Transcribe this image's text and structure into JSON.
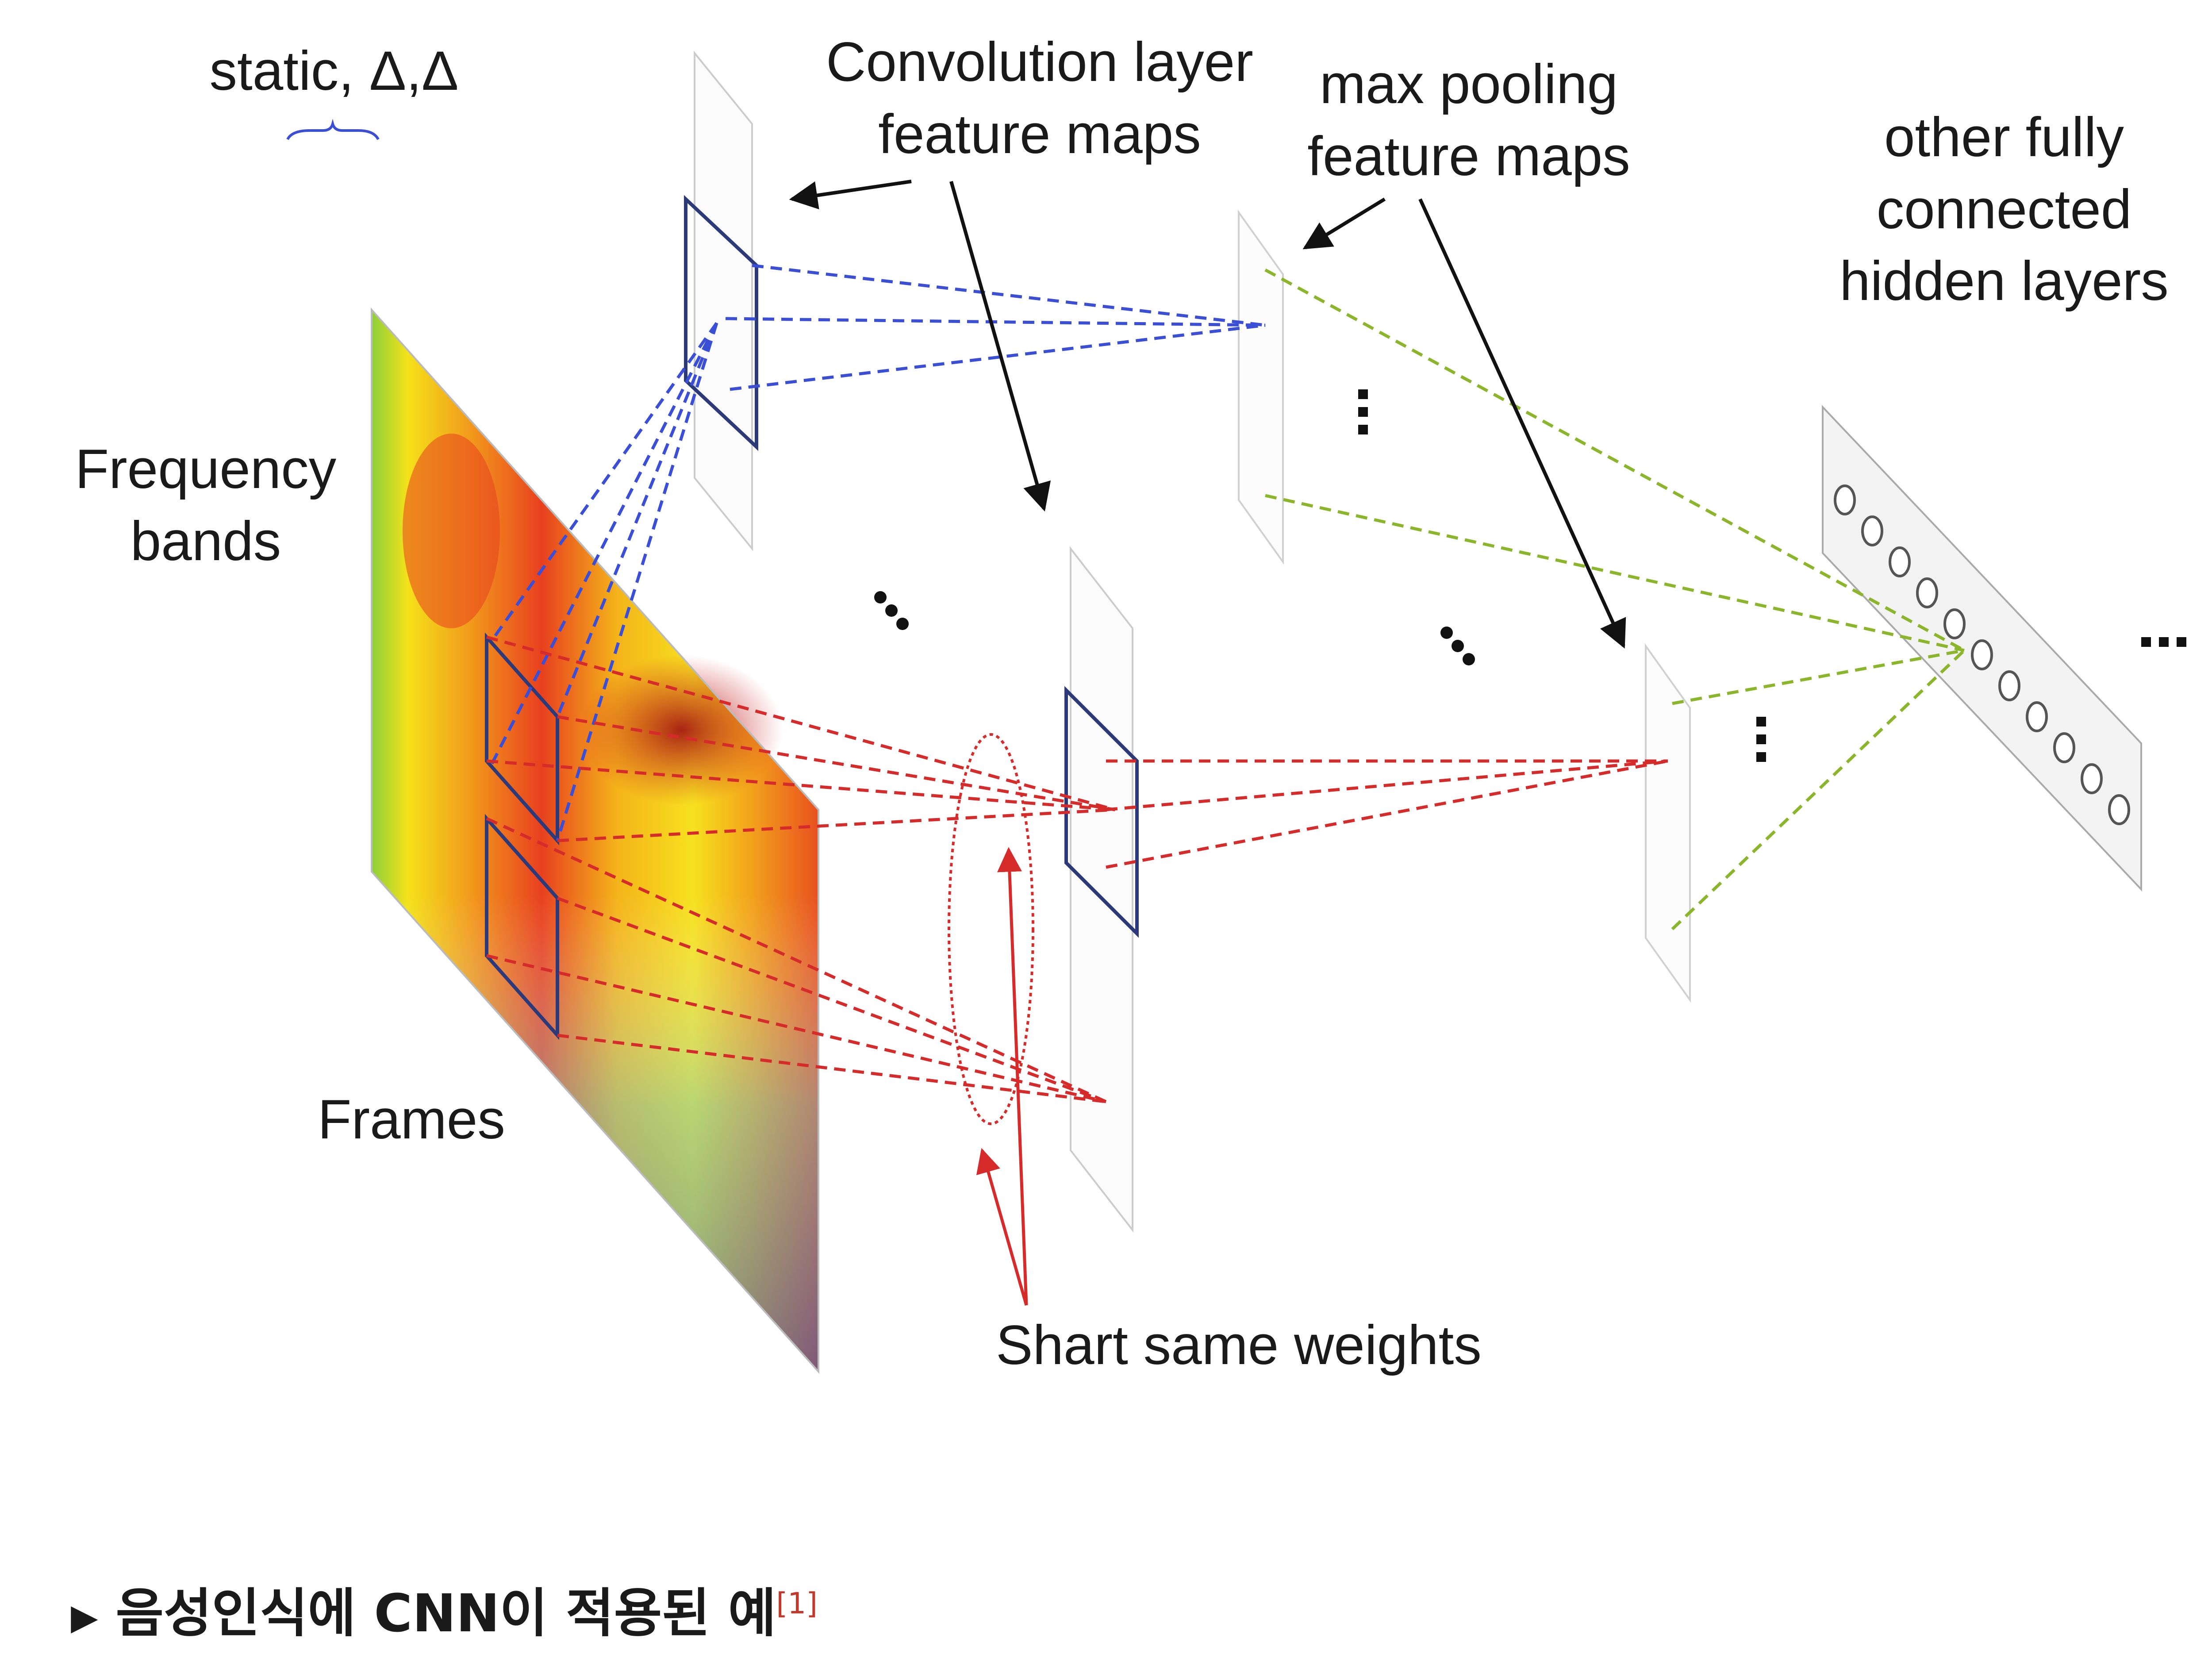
{
  "diagram": {
    "labels": {
      "static_delta": "static, Δ,Δ",
      "convolution_layer": "Convolution layer\nfeature maps",
      "max_pooling": "max pooling\nfeature maps",
      "fully_connected": "other fully\nconnected\nhidden layers",
      "frequency_bands": "Frequency\nbands",
      "frames": "Frames",
      "shared_weights": "Shart same weights"
    },
    "caption": {
      "text": "음성인식에 CNN이 적용된 예",
      "reference": "[1]"
    },
    "colors": {
      "first_layer_links": "#3a4fd6",
      "second_layer_links": "#d62b2b",
      "fully_connected_links": "#8bb52a",
      "filter_box": "#2c3a7a",
      "annotation_arrow": "#111111",
      "weight_arrow": "#d62b2b"
    },
    "icons": [
      "ellipsis-icon",
      "arrow-icon"
    ]
  }
}
